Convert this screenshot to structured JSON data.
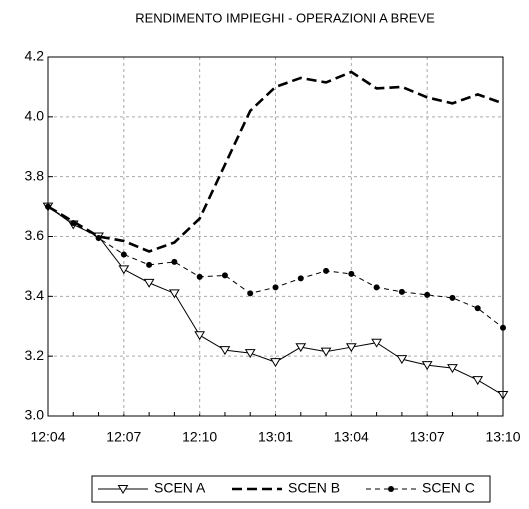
{
  "chart_data": {
    "type": "line",
    "title": "RENDIMENTO IMPIEGHI - OPERAZIONI A BREVE",
    "categories": [
      "12:04",
      null,
      null,
      "12:07",
      null,
      null,
      "12:10",
      null,
      null,
      "13:01",
      null,
      null,
      "13:04",
      null,
      null,
      "13:07",
      null,
      null,
      "13:10"
    ],
    "series": [
      {
        "name": "SCEN A",
        "color": "#000000",
        "dash": "none",
        "marker": "triangle-down",
        "values": [
          3.7,
          3.64,
          3.6,
          3.49,
          3.445,
          3.41,
          3.27,
          3.22,
          3.21,
          3.18,
          3.23,
          3.215,
          3.23,
          3.245,
          3.19,
          3.17,
          3.16,
          3.12,
          3.07
        ]
      },
      {
        "name": "SCEN B",
        "color": "#000000",
        "dash": "10,5",
        "marker": "none",
        "values": [
          3.7,
          3.65,
          3.6,
          3.585,
          3.55,
          3.58,
          3.66,
          3.84,
          4.02,
          4.1,
          4.13,
          4.115,
          4.15,
          4.095,
          4.1,
          4.065,
          4.045,
          4.075,
          4.045
        ]
      },
      {
        "name": "SCEN C",
        "color": "#000000",
        "dash": "5,4",
        "marker": "circle",
        "values": [
          3.7,
          3.645,
          3.595,
          3.54,
          3.505,
          3.515,
          3.465,
          3.47,
          3.41,
          3.43,
          3.46,
          3.485,
          3.475,
          3.43,
          3.415,
          3.405,
          3.395,
          3.36,
          3.295
        ]
      }
    ],
    "ylim": [
      3.0,
      4.2
    ],
    "yticks": [
      {
        "value": 3,
        "label": "3.0"
      },
      3.2,
      3.4,
      3.6,
      3.8,
      {
        "value": 4,
        "label": "4.0"
      },
      4.2
    ],
    "grid": true,
    "legend": "bottom"
  }
}
